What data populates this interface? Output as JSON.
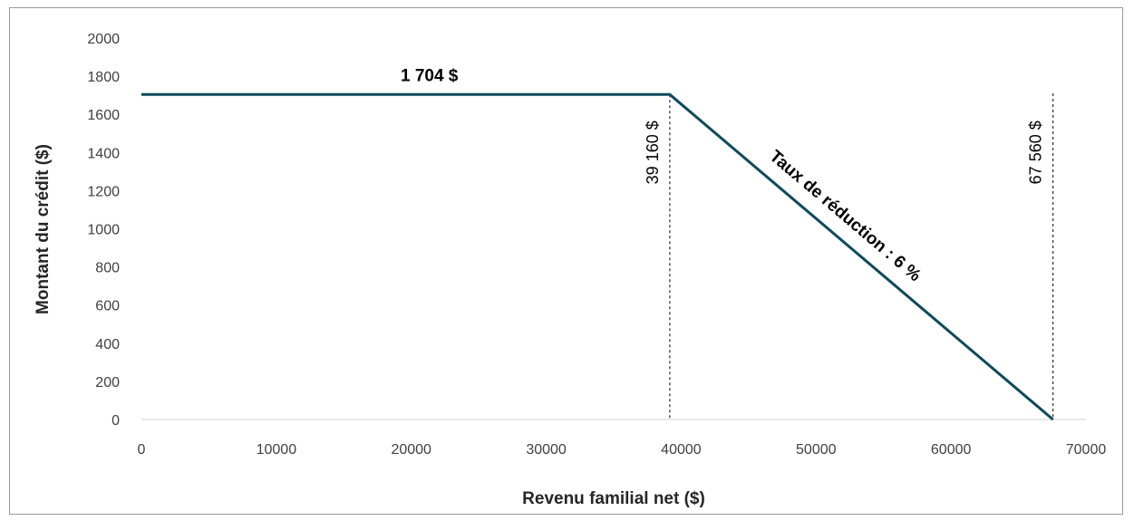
{
  "chart_data": {
    "type": "line",
    "title": "",
    "xlabel": "Revenu familial net ($)",
    "ylabel": "Montant du crédit ($)",
    "xlim": [
      0,
      70000
    ],
    "ylim": [
      0,
      2000
    ],
    "x_ticks": [
      0,
      10000,
      20000,
      30000,
      40000,
      50000,
      60000,
      70000
    ],
    "y_ticks": [
      0,
      200,
      400,
      600,
      800,
      1000,
      1200,
      1400,
      1600,
      1800,
      2000
    ],
    "grid": false,
    "legend": "none",
    "series": [
      {
        "color": "#0e4a5c",
        "x": [
          0,
          39160,
          67560
        ],
        "y": [
          1704,
          1704,
          0
        ]
      }
    ],
    "reference_lines": [
      {
        "x": 39160,
        "y_top": 1704,
        "label": "39 160 $"
      },
      {
        "x": 67560,
        "y_top": 1710,
        "label": "67 560 $"
      }
    ],
    "annotations": {
      "plateau_label": "1 704 $",
      "slope_label": "Taux de réduction : 6 %"
    }
  }
}
